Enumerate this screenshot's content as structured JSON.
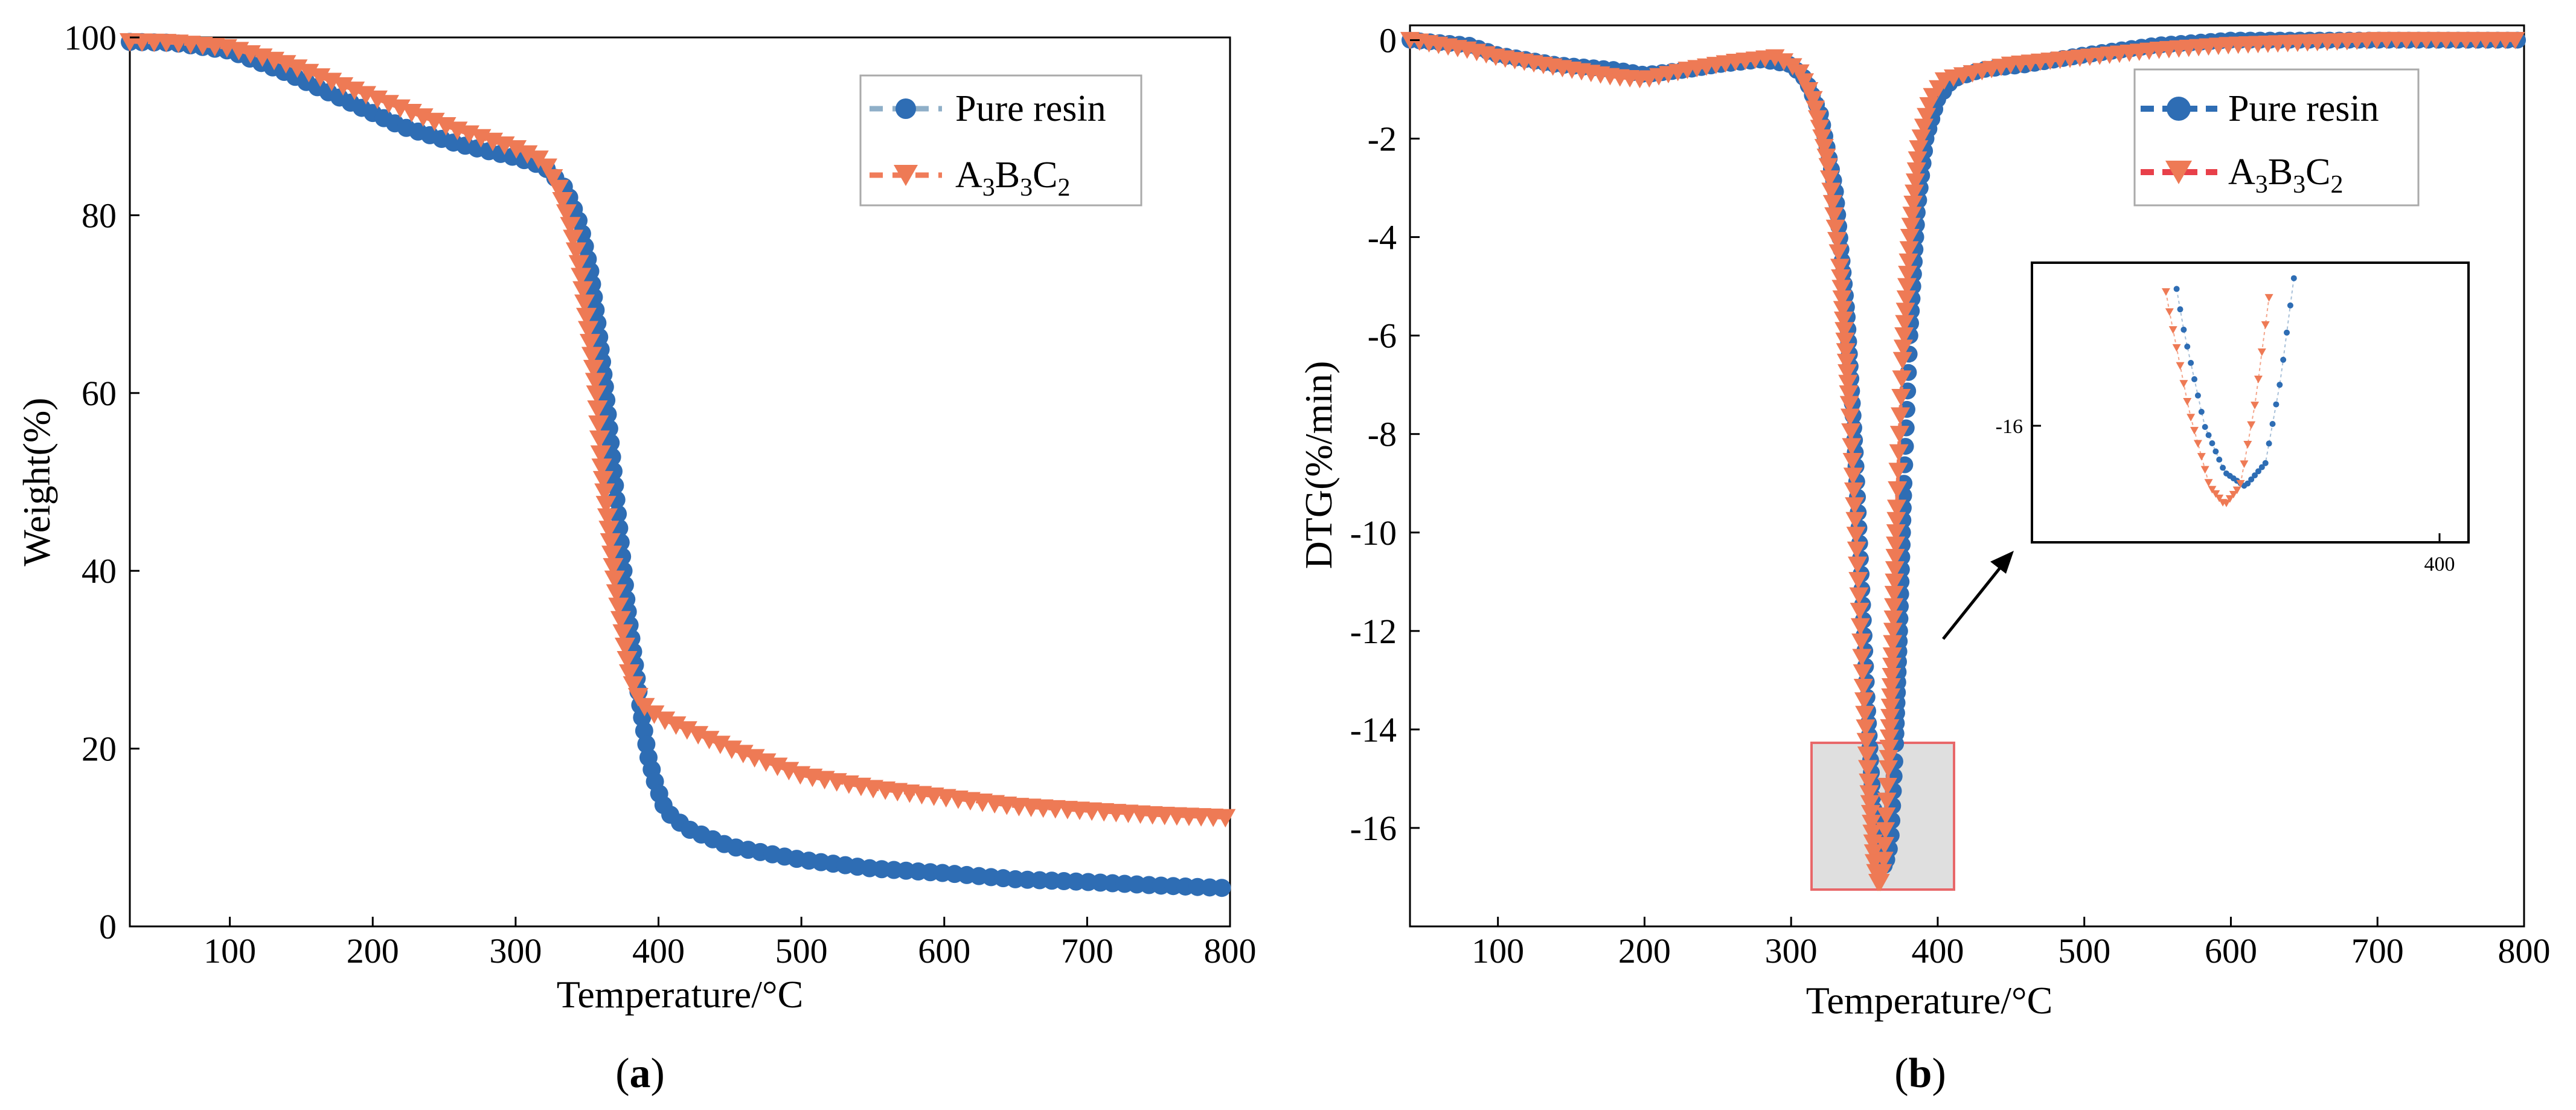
{
  "colors": {
    "pure_resin": "#2E6DB4",
    "pure_resin_line": "#8FAFC8",
    "a3b3c2": "#EE7A55",
    "a3b3c2_line": "#F07C5A",
    "highlight_box": "#E8686A",
    "highlight_fill": "#D9D9D9"
  },
  "chart_data": [
    {
      "id": "a",
      "caption": "a",
      "type": "scatter",
      "title": "",
      "xlabel": "Temperature/°C",
      "ylabel": "Weight(%)",
      "xlim": [
        30,
        800
      ],
      "ylim": [
        0,
        100
      ],
      "xticks": [
        "100",
        "200",
        "300",
        "400",
        "500",
        "600",
        "700",
        "800"
      ],
      "yticks": [
        "0",
        "20",
        "40",
        "60",
        "80",
        "100"
      ],
      "legend_position": "top-right",
      "series": [
        {
          "name": "Pure resin",
          "marker": "circle",
          "points": [
            [
              30,
              99.5
            ],
            [
              60,
              99.4
            ],
            [
              100,
              98.5
            ],
            [
              140,
              96
            ],
            [
              180,
              93
            ],
            [
              220,
              90
            ],
            [
              260,
              88
            ],
            [
              300,
              86.5
            ],
            [
              320,
              85.5
            ],
            [
              335,
              83
            ],
            [
              345,
              79
            ],
            [
              352,
              74
            ],
            [
              358,
              67
            ],
            [
              363,
              60
            ],
            [
              368,
              52
            ],
            [
              373,
              44
            ],
            [
              378,
              36
            ],
            [
              383,
              30
            ],
            [
              388,
              24
            ],
            [
              393,
              19
            ],
            [
              398,
              16
            ],
            [
              405,
              13
            ],
            [
              420,
              11
            ],
            [
              450,
              9
            ],
            [
              500,
              7.5
            ],
            [
              550,
              6.5
            ],
            [
              600,
              6
            ],
            [
              650,
              5.3
            ],
            [
              700,
              5
            ],
            [
              750,
              4.6
            ],
            [
              800,
              4.3
            ]
          ]
        },
        {
          "name": "A3B3C2",
          "legend_parts": {
            "a": "A",
            "s1": "3",
            "b": "B",
            "s2": "3",
            "c": "C",
            "s3": "2"
          },
          "marker": "triangle-down",
          "points": [
            [
              30,
              99.5
            ],
            [
              60,
              99.4
            ],
            [
              100,
              98.8
            ],
            [
              140,
              97
            ],
            [
              180,
              94.5
            ],
            [
              220,
              92
            ],
            [
              260,
              89.5
            ],
            [
              300,
              87.5
            ],
            [
              320,
              86
            ],
            [
              330,
              83
            ],
            [
              338,
              79
            ],
            [
              345,
              74
            ],
            [
              350,
              68
            ],
            [
              356,
              61
            ],
            [
              360,
              52
            ],
            [
              365,
              45
            ],
            [
              370,
              38
            ],
            [
              375,
              33
            ],
            [
              380,
              28
            ],
            [
              388,
              25
            ],
            [
              400,
              23.5
            ],
            [
              450,
              20
            ],
            [
              500,
              17
            ],
            [
              550,
              15.5
            ],
            [
              600,
              14.5
            ],
            [
              650,
              13.5
            ],
            [
              700,
              13
            ],
            [
              750,
              12.5
            ],
            [
              800,
              12.2
            ]
          ]
        }
      ]
    },
    {
      "id": "b",
      "caption": "b",
      "type": "scatter",
      "title": "",
      "xlabel": "Temperature/°C",
      "ylabel": "DTG(%/min)",
      "xlim": [
        40,
        800
      ],
      "ylim": [
        -18,
        0.3
      ],
      "xticks": [
        "100",
        "200",
        "300",
        "400",
        "500",
        "600",
        "700",
        "800"
      ],
      "yticks": [
        "0",
        "-2",
        "-4",
        "-6",
        "-8",
        "-10",
        "-12",
        "-14",
        "-16"
      ],
      "legend_position": "top-right",
      "series": [
        {
          "name": "Pure resin",
          "marker": "circle",
          "points": [
            [
              40,
              0
            ],
            [
              80,
              -0.1
            ],
            [
              100,
              -0.3
            ],
            [
              140,
              -0.5
            ],
            [
              180,
              -0.6
            ],
            [
              200,
              -0.7
            ],
            [
              230,
              -0.6
            ],
            [
              250,
              -0.5
            ],
            [
              280,
              -0.4
            ],
            [
              300,
              -0.5
            ],
            [
              310,
              -0.8
            ],
            [
              320,
              -1.5
            ],
            [
              330,
              -3
            ],
            [
              338,
              -5.5
            ],
            [
              344,
              -8.5
            ],
            [
              348,
              -11
            ],
            [
              352,
              -13.5
            ],
            [
              356,
              -15.5
            ],
            [
              360,
              -16.5
            ],
            [
              364,
              -16.8
            ],
            [
              368,
              -16.3
            ],
            [
              371,
              -14.5
            ],
            [
              374,
              -12
            ],
            [
              377,
              -9
            ],
            [
              381,
              -6
            ],
            [
              386,
              -3.5
            ],
            [
              392,
              -2
            ],
            [
              400,
              -1.2
            ],
            [
              410,
              -0.8
            ],
            [
              430,
              -0.6
            ],
            [
              460,
              -0.5
            ],
            [
              500,
              -0.3
            ],
            [
              550,
              -0.1
            ],
            [
              600,
              0
            ],
            [
              700,
              0
            ],
            [
              800,
              0
            ]
          ]
        },
        {
          "name": "A3B3C2",
          "legend_parts": {
            "a": "A",
            "s1": "3",
            "b": "B",
            "s2": "3",
            "c": "C",
            "s3": "2"
          },
          "marker": "triangle-down",
          "points": [
            [
              40,
              0
            ],
            [
              80,
              -0.2
            ],
            [
              100,
              -0.35
            ],
            [
              140,
              -0.55
            ],
            [
              180,
              -0.75
            ],
            [
              200,
              -0.8
            ],
            [
              230,
              -0.6
            ],
            [
              260,
              -0.45
            ],
            [
              290,
              -0.35
            ],
            [
              305,
              -0.6
            ],
            [
              315,
              -1.2
            ],
            [
              325,
              -2.5
            ],
            [
              333,
              -4.5
            ],
            [
              340,
              -7.5
            ],
            [
              345,
              -10.5
            ],
            [
              349,
              -13
            ],
            [
              353,
              -15.2
            ],
            [
              357,
              -16.8
            ],
            [
              360,
              -17.2
            ],
            [
              363,
              -16.8
            ],
            [
              366,
              -15
            ],
            [
              369,
              -12.5
            ],
            [
              372,
              -9.5
            ],
            [
              376,
              -6.5
            ],
            [
              381,
              -4
            ],
            [
              387,
              -2.2
            ],
            [
              395,
              -1.2
            ],
            [
              405,
              -0.8
            ],
            [
              420,
              -0.7
            ],
            [
              450,
              -0.5
            ],
            [
              500,
              -0.35
            ],
            [
              550,
              -0.2
            ],
            [
              600,
              -0.1
            ],
            [
              700,
              0
            ],
            [
              800,
              0
            ]
          ]
        }
      ],
      "inset": {
        "ytick_label": "-16",
        "xtick_label": "400"
      }
    }
  ]
}
